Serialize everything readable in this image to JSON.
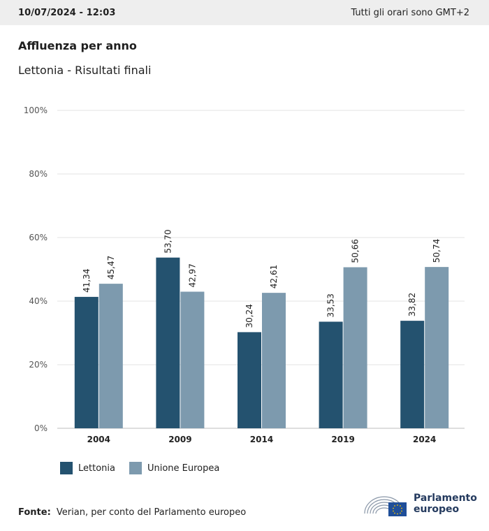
{
  "header": {
    "datetime": "10/07/2024 - 12:03",
    "timezone_note": "Tutti gli orari sono GMT+2"
  },
  "chart_data": {
    "type": "bar",
    "title": "Affluenza per anno",
    "subtitle": "Lettonia - Risultati finali",
    "categories": [
      "2004",
      "2009",
      "2014",
      "2019",
      "2024"
    ],
    "series": [
      {
        "name": "Lettonia",
        "color": "#24526f",
        "values": [
          41.34,
          53.7,
          30.24,
          33.53,
          33.82
        ],
        "labels": [
          "41,34",
          "53,70",
          "30,24",
          "33,53",
          "33,82"
        ]
      },
      {
        "name": "Unione Europea",
        "color": "#7d9aae",
        "values": [
          45.47,
          42.97,
          42.61,
          50.66,
          50.74
        ],
        "labels": [
          "45,47",
          "42,97",
          "42,61",
          "50,66",
          "50,74"
        ]
      }
    ],
    "ylim": [
      0,
      100
    ],
    "yticks": [
      0,
      20,
      40,
      60,
      80,
      100
    ],
    "ytick_labels": [
      "0%",
      "20%",
      "40%",
      "60%",
      "80%",
      "100%"
    ],
    "grid": true,
    "legend": "bottom-left"
  },
  "footer": {
    "source_label": "Fonte:",
    "source_text": "Verian, per conto del Parlamento europeo"
  },
  "logo": {
    "line1": "Parlamento",
    "line2": "europeo"
  }
}
